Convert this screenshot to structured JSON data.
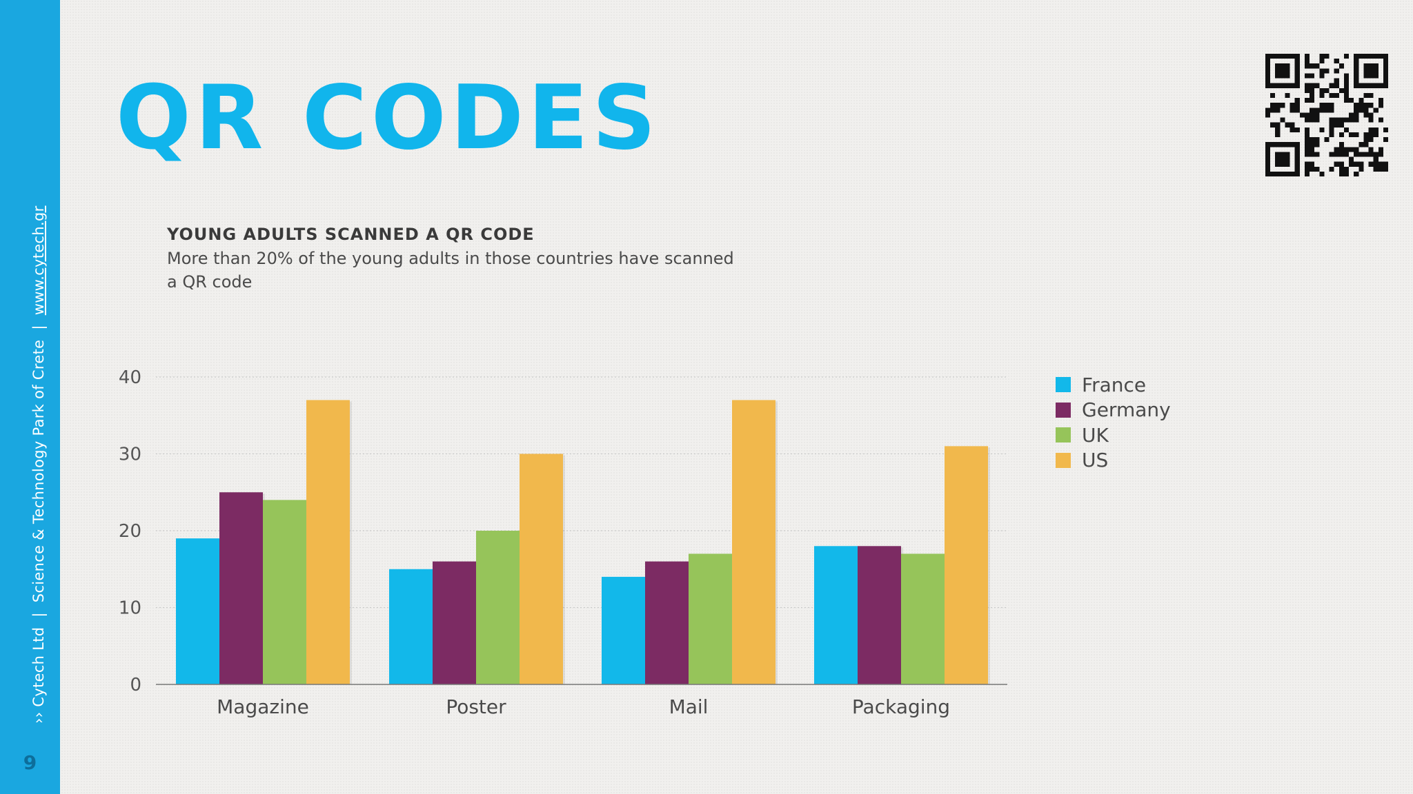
{
  "sidebar": {
    "company": "›› Cytech Ltd",
    "org": "Science & Technology Park of Crete",
    "separator": "|",
    "website": "www.cytech.gr",
    "page_number": "9",
    "color": "#1aa7e0"
  },
  "header": {
    "title": "QR CODES",
    "qr_icon": "qr-code-icon"
  },
  "colors": {
    "title": "#11b5ec",
    "France": "#12b8ea",
    "Germany": "#7c2b63",
    "UK": "#96c45a",
    "US": "#f1b84c"
  },
  "chart_data": {
    "type": "bar",
    "title": "YOUNG ADULTS SCANNED A QR CODE",
    "subtitle": "More than 20% of the young adults in those countries have scanned a QR code",
    "xlabel": "",
    "ylabel": "",
    "categories": [
      "Magazine",
      "Poster",
      "Mail",
      "Packaging"
    ],
    "series": [
      {
        "name": "France",
        "color": "#12b8ea",
        "values": [
          19,
          15,
          14,
          18
        ]
      },
      {
        "name": "Germany",
        "color": "#7c2b63",
        "values": [
          25,
          16,
          16,
          18
        ]
      },
      {
        "name": "UK",
        "color": "#96c45a",
        "values": [
          24,
          20,
          17,
          17
        ]
      },
      {
        "name": "US",
        "color": "#f1b84c",
        "values": [
          37,
          30,
          37,
          31
        ]
      }
    ],
    "ylim": [
      0,
      40
    ],
    "yticks": [
      0,
      10,
      20,
      30,
      40
    ],
    "grid": true,
    "legend_position": "right"
  }
}
